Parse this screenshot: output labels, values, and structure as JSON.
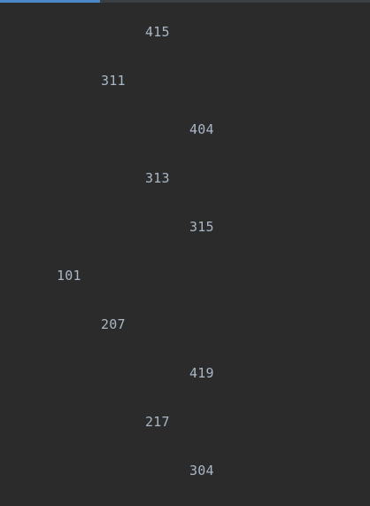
{
  "window": {
    "tab_indicator_color": "#4a88c7",
    "background_color": "#2b2b2b",
    "text_color": "#a9b7c6"
  },
  "tree": {
    "nodes": [
      {
        "value": "415",
        "depth": 2
      },
      {
        "value": "311",
        "depth": 1
      },
      {
        "value": "404",
        "depth": 3
      },
      {
        "value": "313",
        "depth": 2
      },
      {
        "value": "315",
        "depth": 3
      },
      {
        "value": "101",
        "depth": 0
      },
      {
        "value": "207",
        "depth": 1
      },
      {
        "value": "419",
        "depth": 3
      },
      {
        "value": "217",
        "depth": 2
      },
      {
        "value": "304",
        "depth": 3
      }
    ]
  }
}
